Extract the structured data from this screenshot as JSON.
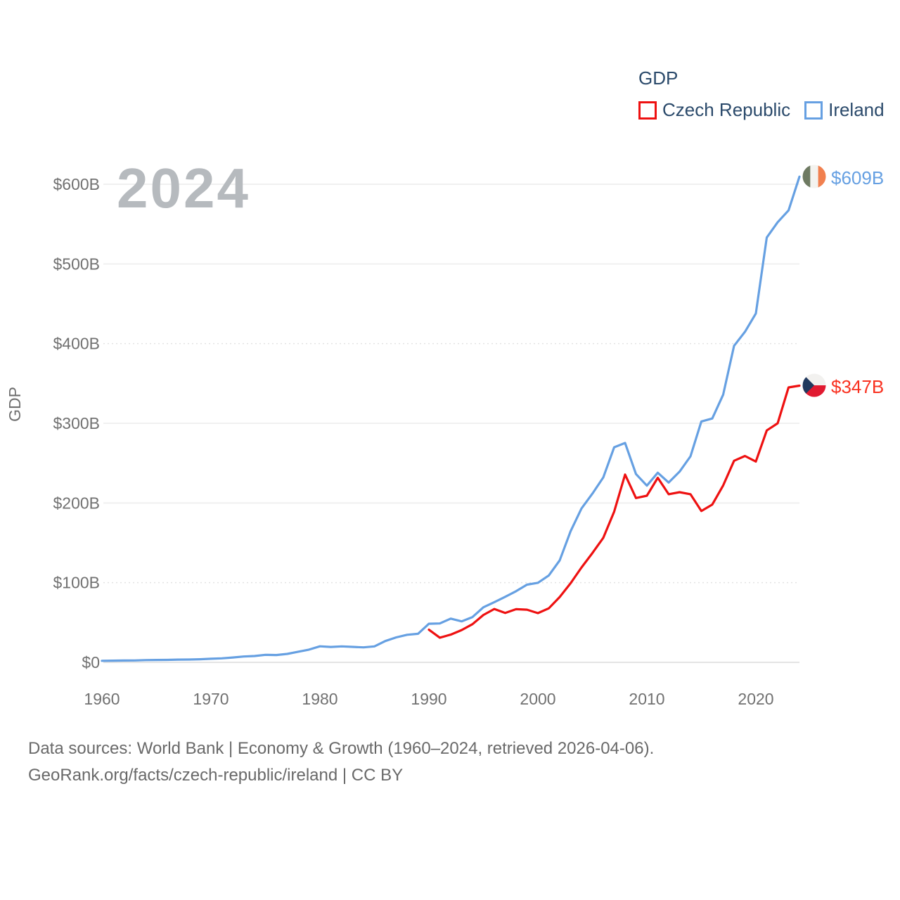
{
  "legend": {
    "title": "GDP",
    "items": [
      {
        "label": "Czech Republic",
        "color": "#ee1111"
      },
      {
        "label": "Ireland",
        "color": "#66a0e2"
      }
    ]
  },
  "watermark": "2024",
  "y_axis_title": "GDP",
  "source": {
    "line1": "Data sources: World Bank | Economy & Growth (1960–2024, retrieved 2026-04-06).",
    "line2": "GeoRank.org/facts/czech-republic/ireland | CC BY"
  },
  "end_labels": {
    "ireland": {
      "text": "$609B",
      "color": "#66a0e2"
    },
    "czech": {
      "text": "$347B",
      "color": "#f93120"
    }
  },
  "icons": {
    "ireland_flag": {
      "green": "#6e7a62",
      "white": "#f4f3ef",
      "orange": "#f1804f"
    },
    "czech_flag": {
      "white": "#f2f1ef",
      "red": "#e11a30",
      "blue": "#21395e"
    }
  },
  "chart_data": {
    "type": "line",
    "title": "GDP",
    "xlabel": "",
    "ylabel": "GDP",
    "ylim": [
      0,
      640
    ],
    "grid": "horizontal",
    "legend_position": "top-right",
    "yticks": [
      {
        "value": 0,
        "label": "$0",
        "style": "solid"
      },
      {
        "value": 100,
        "label": "$100B",
        "style": "dotted"
      },
      {
        "value": 200,
        "label": "$200B",
        "style": "solid"
      },
      {
        "value": 300,
        "label": "$300B",
        "style": "solid"
      },
      {
        "value": 400,
        "label": "$400B",
        "style": "dotted"
      },
      {
        "value": 500,
        "label": "$500B",
        "style": "solid"
      },
      {
        "value": 600,
        "label": "$600B",
        "style": "solid"
      }
    ],
    "xticks": [
      {
        "value": 1960,
        "label": "1960"
      },
      {
        "value": 1970,
        "label": "1970"
      },
      {
        "value": 1980,
        "label": "1980"
      },
      {
        "value": 1990,
        "label": "1990"
      },
      {
        "value": 2000,
        "label": "2000"
      },
      {
        "value": 2010,
        "label": "2010"
      },
      {
        "value": 2020,
        "label": "2020"
      }
    ],
    "series": [
      {
        "name": "Ireland",
        "color": "#66a0e2",
        "end_label": "$609B",
        "years": [
          1960,
          1961,
          1962,
          1963,
          1964,
          1965,
          1966,
          1967,
          1968,
          1969,
          1970,
          1971,
          1972,
          1973,
          1974,
          1975,
          1976,
          1977,
          1978,
          1979,
          1980,
          1981,
          1982,
          1983,
          1984,
          1985,
          1986,
          1987,
          1988,
          1989,
          1990,
          1991,
          1992,
          1993,
          1994,
          1995,
          1996,
          1997,
          1998,
          1999,
          2000,
          2001,
          2002,
          2003,
          2004,
          2005,
          2006,
          2007,
          2008,
          2009,
          2010,
          2011,
          2012,
          2013,
          2014,
          2015,
          2016,
          2017,
          2018,
          2019,
          2020,
          2021,
          2022,
          2023,
          2024
        ],
        "values": [
          1.9,
          2.1,
          2.3,
          2.4,
          2.8,
          3.0,
          3.1,
          3.4,
          3.5,
          3.9,
          4.5,
          5.0,
          6.1,
          7.3,
          7.9,
          9.4,
          9.2,
          10.6,
          13.3,
          16.0,
          20.1,
          19.3,
          20.0,
          19.4,
          18.8,
          20.0,
          26.7,
          31.3,
          34.6,
          35.8,
          48.4,
          48.8,
          54.9,
          51.4,
          56.8,
          69.1,
          75.5,
          82.2,
          89.3,
          97.5,
          99.8,
          109.1,
          127.9,
          164.5,
          193.1,
          211.7,
          232.1,
          269.9,
          275.3,
          236.3,
          221.7,
          238.0,
          225.6,
          239.3,
          258.5,
          302.3,
          306.0,
          335.9,
          397.2,
          414.8,
          437.8,
          533.1,
          552.3,
          567.2,
          609.4
        ]
      },
      {
        "name": "Czech Republic",
        "color": "#ee1111",
        "end_label": "$347B",
        "years": [
          1990,
          1991,
          1992,
          1993,
          1994,
          1995,
          1996,
          1997,
          1998,
          1999,
          2000,
          2001,
          2002,
          2003,
          2004,
          2005,
          2006,
          2007,
          2008,
          2009,
          2010,
          2011,
          2012,
          2013,
          2014,
          2015,
          2016,
          2017,
          2018,
          2019,
          2020,
          2021,
          2022,
          2023,
          2024
        ],
        "values": [
          40.9,
          31.0,
          34.8,
          40.5,
          47.9,
          59.5,
          67.0,
          61.9,
          66.7,
          66.1,
          61.8,
          67.8,
          82.0,
          99.3,
          119.0,
          137.1,
          156.3,
          189.2,
          235.7,
          206.2,
          209.1,
          231.6,
          211.0,
          213.5,
          211.0,
          190.0,
          198.0,
          222.0,
          253.0,
          259.0,
          252.0,
          291.0,
          300.0,
          345.0,
          347.2
        ]
      }
    ]
  }
}
